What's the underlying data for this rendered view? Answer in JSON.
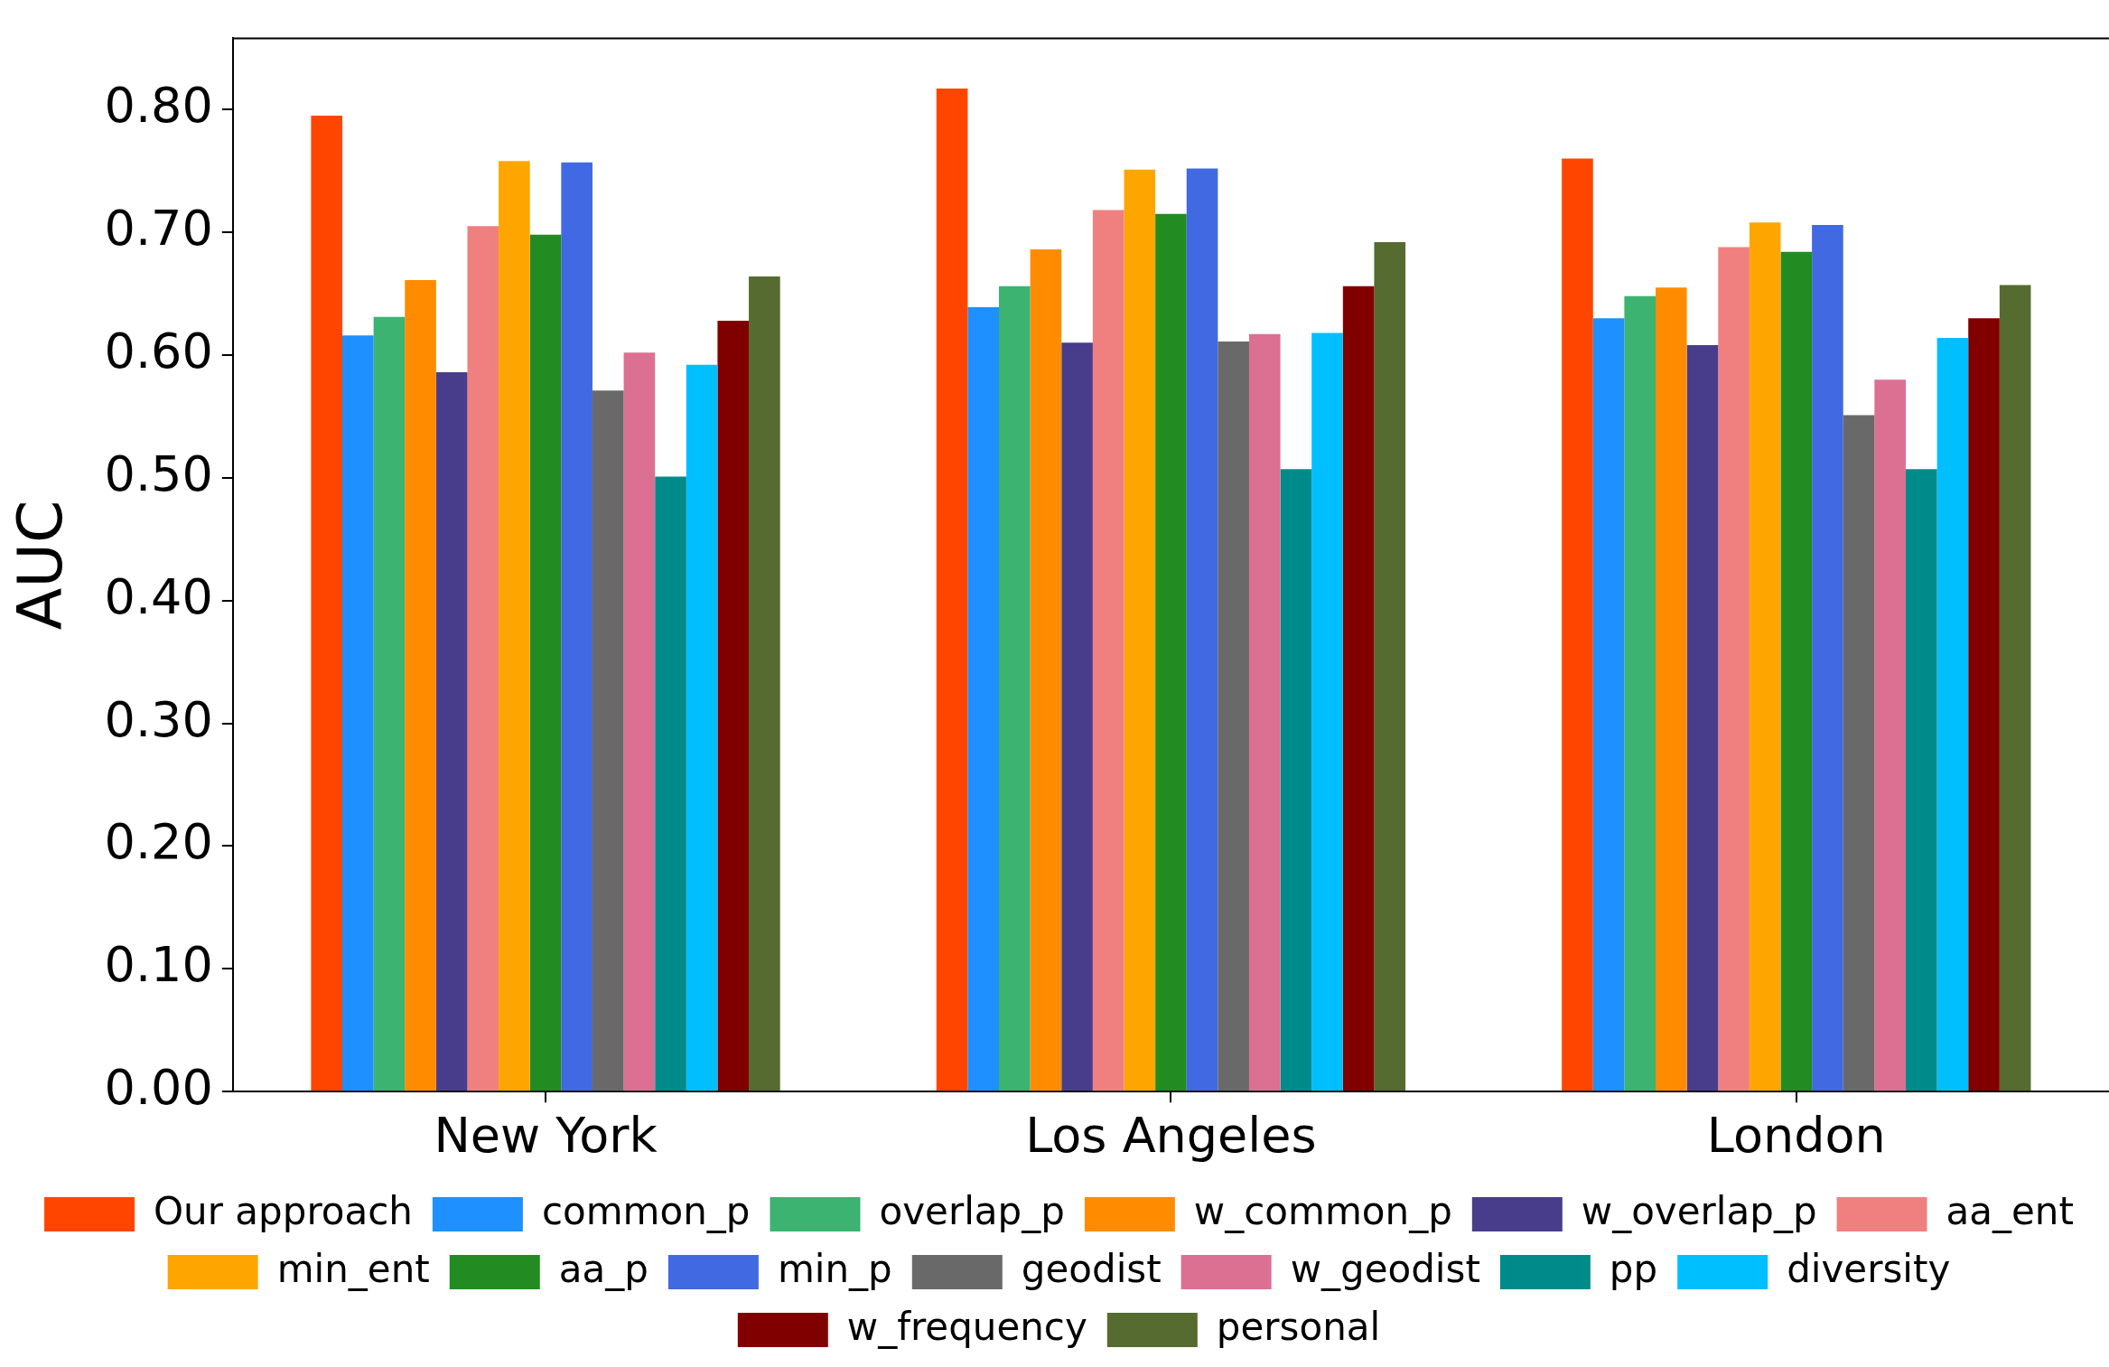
{
  "chart_data": {
    "type": "bar",
    "ylabel": "AUC",
    "categories": [
      "New York",
      "Los Angeles",
      "London"
    ],
    "series": [
      {
        "name": "Our approach",
        "color": "#ff4500",
        "values": [
          0.795,
          0.817,
          0.76
        ]
      },
      {
        "name": "common_p",
        "color": "#1e90ff",
        "values": [
          0.616,
          0.639,
          0.63
        ]
      },
      {
        "name": "overlap_p",
        "color": "#3cb371",
        "values": [
          0.631,
          0.656,
          0.648
        ]
      },
      {
        "name": "w_common_p",
        "color": "#ff8c00",
        "values": [
          0.661,
          0.686,
          0.655
        ]
      },
      {
        "name": "w_overlap_p",
        "color": "#483d8b",
        "values": [
          0.586,
          0.61,
          0.608
        ]
      },
      {
        "name": "aa_ent",
        "color": "#f08080",
        "values": [
          0.705,
          0.718,
          0.688
        ]
      },
      {
        "name": "min_ent",
        "color": "#ffa500",
        "values": [
          0.758,
          0.751,
          0.708
        ]
      },
      {
        "name": "aa_p",
        "color": "#228b22",
        "values": [
          0.698,
          0.715,
          0.684
        ]
      },
      {
        "name": "min_p",
        "color": "#4169e1",
        "values": [
          0.757,
          0.752,
          0.706
        ]
      },
      {
        "name": "geodist",
        "color": "#696969",
        "values": [
          0.571,
          0.611,
          0.551
        ]
      },
      {
        "name": "w_geodist",
        "color": "#db7093",
        "values": [
          0.602,
          0.617,
          0.58
        ]
      },
      {
        "name": "pp",
        "color": "#008b8b",
        "values": [
          0.501,
          0.507,
          0.507
        ]
      },
      {
        "name": "diversity",
        "color": "#00bfff",
        "values": [
          0.592,
          0.618,
          0.614
        ]
      },
      {
        "name": "w_frequency",
        "color": "#800000",
        "values": [
          0.628,
          0.656,
          0.63
        ]
      },
      {
        "name": "personal",
        "color": "#556b2f",
        "values": [
          0.664,
          0.692,
          0.657
        ]
      }
    ],
    "ylim": [
      0,
      0.858
    ],
    "yticks": [
      {
        "value": 0,
        "label": "0.00"
      },
      {
        "value": 0.1,
        "label": "0.10"
      },
      {
        "value": 0.2,
        "label": "0.20"
      },
      {
        "value": 0.3,
        "label": "0.30"
      },
      {
        "value": 0.4,
        "label": "0.40"
      },
      {
        "value": 0.5,
        "label": "0.50"
      },
      {
        "value": 0.6,
        "label": "0.60"
      },
      {
        "value": 0.7,
        "label": "0.70"
      },
      {
        "value": 0.8,
        "label": "0.80"
      }
    ],
    "grid": false,
    "legend": "bottom"
  }
}
